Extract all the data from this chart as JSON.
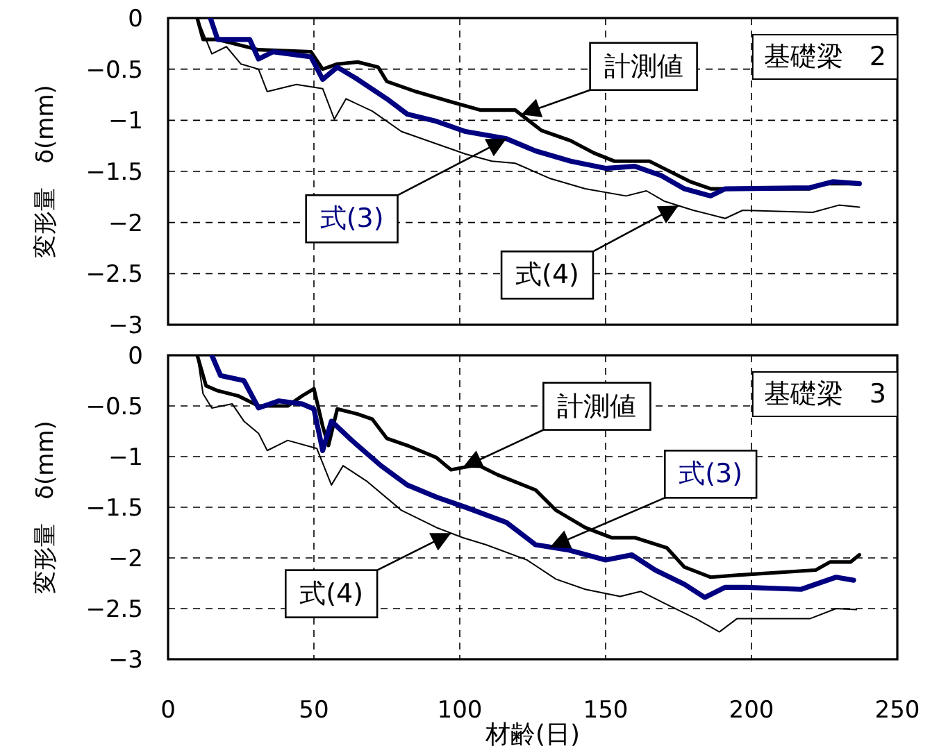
{
  "chart_data": [
    {
      "type": "line",
      "title": "基礎梁　2",
      "ylabel": "変形量　δ(mm)",
      "xlim": [
        0,
        250
      ],
      "ylim": [
        -3,
        0
      ],
      "xticks": [
        0,
        50,
        100,
        150,
        200,
        250
      ],
      "yticks": [
        -3,
        -2.5,
        -2,
        -1.5,
        -1,
        -0.5,
        0
      ],
      "grid": true,
      "tick_labels": "y",
      "series": [
        {
          "name": "計測値",
          "color": "#000000",
          "x": [
            10,
            12,
            17,
            31,
            49,
            53,
            58,
            65,
            72,
            75,
            85,
            97,
            107,
            119,
            128,
            138,
            146,
            153,
            165,
            172,
            179,
            186,
            220,
            225,
            237
          ],
          "values": [
            0,
            -0.21,
            -0.21,
            -0.31,
            -0.33,
            -0.5,
            -0.45,
            -0.43,
            -0.48,
            -0.62,
            -0.72,
            -0.82,
            -0.9,
            -0.9,
            -1.1,
            -1.2,
            -1.32,
            -1.4,
            -1.4,
            -1.5,
            -1.6,
            -1.67,
            -1.67,
            -1.62,
            -1.62
          ]
        },
        {
          "name": "式(3)",
          "color": "#000080",
          "x": [
            14.5,
            17,
            28,
            31,
            36,
            49,
            53,
            58,
            65,
            75,
            82,
            92,
            102,
            116,
            126,
            138,
            150,
            160,
            169,
            177,
            186,
            191,
            220,
            228,
            237
          ],
          "values": [
            0,
            -0.21,
            -0.21,
            -0.4,
            -0.33,
            -0.38,
            -0.6,
            -0.48,
            -0.6,
            -0.79,
            -0.94,
            -1.01,
            -1.11,
            -1.18,
            -1.3,
            -1.4,
            -1.47,
            -1.45,
            -1.54,
            -1.67,
            -1.74,
            -1.67,
            -1.66,
            -1.6,
            -1.62
          ]
        },
        {
          "name": "式(4)",
          "color": "#000000",
          "x": [
            10,
            15,
            20,
            25,
            31,
            34,
            41,
            44,
            53,
            57,
            61,
            70,
            80,
            92,
            102,
            111,
            119,
            131,
            143,
            157,
            164,
            170,
            180,
            191,
            197,
            221,
            230,
            237
          ],
          "values": [
            0,
            -0.35,
            -0.28,
            -0.45,
            -0.5,
            -0.72,
            -0.67,
            -0.65,
            -0.69,
            -0.99,
            -0.79,
            -0.91,
            -1.11,
            -1.23,
            -1.33,
            -1.4,
            -1.42,
            -1.57,
            -1.67,
            -1.74,
            -1.69,
            -1.79,
            -1.88,
            -1.96,
            -1.88,
            -1.9,
            -1.83,
            -1.85
          ]
        }
      ]
    },
    {
      "type": "line",
      "title": "基礎梁　3",
      "xlabel": "材齢(日)",
      "ylabel": "変形量　δ(mm)",
      "xlim": [
        0,
        250
      ],
      "ylim": [
        -3,
        0
      ],
      "xticks": [
        0,
        50,
        100,
        150,
        200,
        250
      ],
      "yticks": [
        -3,
        -2.5,
        -2,
        -1.5,
        -1,
        -0.5,
        0
      ],
      "grid": true,
      "series": [
        {
          "name": "計測値",
          "color": "#000000",
          "x": [
            10,
            13,
            17,
            24,
            31,
            41,
            46,
            50,
            53,
            55,
            58,
            65,
            70,
            75,
            82,
            92,
            97,
            106,
            113,
            126,
            133,
            143,
            152,
            160,
            171,
            177,
            186,
            195,
            222,
            227,
            234,
            237
          ],
          "values": [
            0,
            -0.3,
            -0.35,
            -0.4,
            -0.5,
            -0.5,
            -0.4,
            -0.33,
            -0.7,
            -0.89,
            -0.53,
            -0.58,
            -0.63,
            -0.82,
            -0.89,
            -1.01,
            -1.13,
            -1.08,
            -1.18,
            -1.33,
            -1.53,
            -1.7,
            -1.8,
            -1.8,
            -1.9,
            -2.09,
            -2.19,
            -2.17,
            -2.12,
            -2.04,
            -2.04,
            -1.97
          ]
        },
        {
          "name": "式(3)",
          "color": "#000080",
          "x": [
            15,
            18,
            26,
            31,
            38,
            46,
            50,
            53,
            56,
            63,
            73,
            82,
            92,
            102,
            116,
            126,
            137,
            150,
            159,
            167,
            177,
            184,
            191,
            198,
            217,
            229,
            235
          ],
          "values": [
            0,
            -0.2,
            -0.25,
            -0.52,
            -0.45,
            -0.48,
            -0.53,
            -0.94,
            -0.65,
            -0.84,
            -1.09,
            -1.28,
            -1.4,
            -1.5,
            -1.65,
            -1.87,
            -1.92,
            -2.02,
            -1.97,
            -2.12,
            -2.26,
            -2.39,
            -2.29,
            -2.29,
            -2.31,
            -2.19,
            -2.22
          ]
        },
        {
          "name": "式(4)",
          "color": "#000000",
          "x": [
            10,
            12,
            15,
            22,
            26,
            31,
            34,
            41,
            51,
            56,
            60,
            68,
            80,
            92,
            101,
            109,
            123,
            133,
            143,
            155,
            162,
            171,
            181,
            189,
            195,
            220,
            229,
            236
          ],
          "values": [
            0,
            -0.38,
            -0.52,
            -0.48,
            -0.65,
            -0.77,
            -0.94,
            -0.84,
            -0.92,
            -1.28,
            -1.09,
            -1.24,
            -1.53,
            -1.7,
            -1.8,
            -1.87,
            -2.02,
            -2.21,
            -2.31,
            -2.38,
            -2.33,
            -2.46,
            -2.6,
            -2.73,
            -2.6,
            -2.6,
            -2.5,
            -2.51
          ]
        }
      ]
    }
  ]
}
